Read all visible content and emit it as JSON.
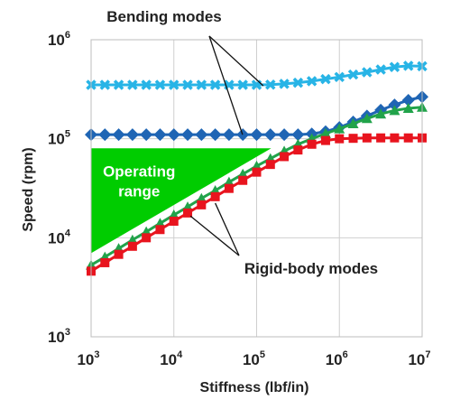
{
  "chart_data": {
    "type": "line",
    "xscale": "log",
    "yscale": "log",
    "xlim": [
      1000,
      10000000
    ],
    "ylim": [
      1000,
      1000000
    ],
    "xlabel": "Stiffness (lbf/in)",
    "ylabel": "Speed (rpm)",
    "grid": true,
    "x_ticks": [
      {
        "base": "10",
        "exp": "3"
      },
      {
        "base": "10",
        "exp": "4"
      },
      {
        "base": "10",
        "exp": "5"
      },
      {
        "base": "10",
        "exp": "6"
      },
      {
        "base": "10",
        "exp": "7"
      }
    ],
    "y_ticks": [
      {
        "base": "10",
        "exp": "3"
      },
      {
        "base": "10",
        "exp": "4"
      },
      {
        "base": "10",
        "exp": "5"
      },
      {
        "base": "10",
        "exp": "6"
      }
    ],
    "x": [
      1000,
      1468,
      2154,
      3162,
      4642,
      6813,
      10000,
      14678,
      21544,
      31623,
      46416,
      68129,
      100000,
      146780,
      215440,
      316230,
      464160,
      681290,
      1000000,
      1467800,
      2154400,
      3162300,
      4641600,
      6812900,
      10000000
    ],
    "series": [
      {
        "color": "#28b4e6",
        "marker": "x",
        "values": [
          350000,
          350000,
          350000,
          350000,
          350000,
          350000,
          350000,
          350000,
          350000,
          350000,
          350000,
          350000,
          350000,
          352000,
          358000,
          368000,
          382000,
          400000,
          420000,
          445000,
          470000,
          500000,
          530000,
          545000,
          540000
        ]
      },
      {
        "color": "#1f65b4",
        "marker": "diamond",
        "values": [
          110000,
          110000,
          110000,
          110000,
          110000,
          110000,
          110000,
          110000,
          110000,
          110000,
          110000,
          110000,
          110000,
          110000,
          110000,
          110000,
          112000,
          118000,
          130000,
          148000,
          170000,
          195000,
          220000,
          245000,
          265000
        ]
      },
      {
        "color": "#21a34a",
        "marker": "triangle",
        "values": [
          5300,
          6400,
          7800,
          9500,
          11500,
          14000,
          17000,
          20500,
          25000,
          30000,
          36500,
          44000,
          53000,
          63000,
          75000,
          88000,
          100000,
          113000,
          126000,
          142000,
          160000,
          178000,
          193000,
          203000,
          208000
        ]
      },
      {
        "color": "#e8141e",
        "marker": "square",
        "values": [
          4600,
          5600,
          6800,
          8200,
          10000,
          12100,
          14700,
          17800,
          21500,
          26000,
          31500,
          38000,
          46000,
          55000,
          66000,
          77000,
          88000,
          96000,
          100000,
          101000,
          102000,
          102000,
          102000,
          102000,
          102000
        ]
      }
    ],
    "region": {
      "label_lines": [
        "Operating",
        "range"
      ],
      "color": "#00cc00",
      "vertices": [
        [
          1000,
          80000
        ],
        [
          150000,
          80000
        ],
        [
          1000,
          7000
        ]
      ]
    },
    "annotations": {
      "bending": "Bending modes",
      "rigid": "Rigid-body modes"
    }
  }
}
